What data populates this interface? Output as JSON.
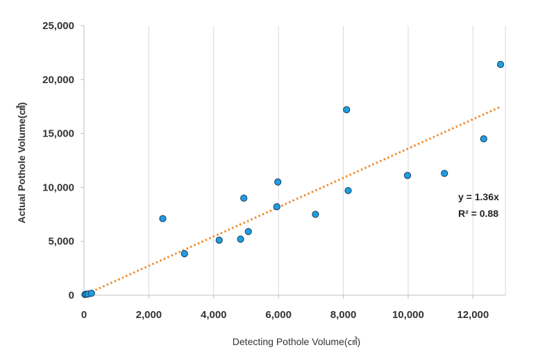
{
  "chart_data": {
    "type": "scatter",
    "xlabel": "Detecting Pothole Volume(㎤)",
    "ylabel": "Actual Pothole Volume(㎤)",
    "xlim": [
      0,
      13000
    ],
    "ylim": [
      0,
      25000
    ],
    "x_ticks": [
      0,
      2000,
      4000,
      6000,
      8000,
      10000,
      12000
    ],
    "x_tick_labels": [
      "0",
      "2,000",
      "4,000",
      "6,000",
      "8,000",
      "10,000",
      "12,000"
    ],
    "y_ticks": [
      0,
      5000,
      10000,
      15000,
      20000,
      25000
    ],
    "y_tick_labels": [
      "0",
      "5,000",
      "10,000",
      "15,000",
      "20,000",
      "25,000"
    ],
    "grid": "vertical",
    "series": [
      {
        "marker_color": "#1f9ee0",
        "marker_edge": "#1a3a5c",
        "points": [
          {
            "x": 30,
            "y": 60
          },
          {
            "x": 70,
            "y": 90
          },
          {
            "x": 130,
            "y": 110
          },
          {
            "x": 230,
            "y": 180
          },
          {
            "x": 2430,
            "y": 7100
          },
          {
            "x": 3100,
            "y": 3850
          },
          {
            "x": 4170,
            "y": 5100
          },
          {
            "x": 4830,
            "y": 5200
          },
          {
            "x": 4930,
            "y": 9000
          },
          {
            "x": 5070,
            "y": 5900
          },
          {
            "x": 5950,
            "y": 8200
          },
          {
            "x": 5980,
            "y": 10500
          },
          {
            "x": 7140,
            "y": 7500
          },
          {
            "x": 8100,
            "y": 17200
          },
          {
            "x": 8150,
            "y": 9700
          },
          {
            "x": 9980,
            "y": 11100
          },
          {
            "x": 11120,
            "y": 11300
          },
          {
            "x": 12330,
            "y": 14500
          },
          {
            "x": 12850,
            "y": 21400
          }
        ]
      }
    ],
    "trendline": {
      "slope": 1.36,
      "x_range": [
        0,
        12850
      ],
      "color": "#f08a2c",
      "style": "dotted"
    },
    "annotations": {
      "equation": "y = 1.36x",
      "r_squared": "R² = 0.88"
    }
  }
}
